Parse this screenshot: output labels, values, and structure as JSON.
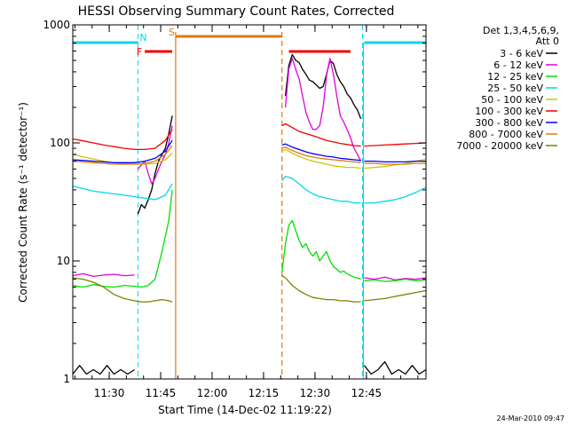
{
  "chart_data": {
    "type": "line",
    "title": "HESSI Observing Summary Count Rates, Corrected",
    "xlabel": "Start Time (14-Dec-02 11:19:22)",
    "ylabel": "Corrected Count Rate (s⁻¹ detector⁻¹)",
    "yscale": "log",
    "ylim": [
      1,
      1000
    ],
    "xlim_minutes": [
      0,
      103
    ],
    "x_ticks": [
      "11:30",
      "11:45",
      "12:00",
      "12:15",
      "12:30",
      "12:45"
    ],
    "x_tick_minutes": [
      10.63,
      25.63,
      40.63,
      55.63,
      70.63,
      85.63
    ],
    "y_ticks": [
      "1",
      "10",
      "100",
      "1000"
    ],
    "y_tick_values": [
      1,
      10,
      100,
      1000
    ],
    "legend_title": "Det 1,3,4,5,6,9,",
    "legend_subtitle": "Att 0",
    "timestamp": "24-Mar-2010 09:47",
    "colors": {
      "night": "#00d8e8",
      "saa": "#e07810",
      "flare": "#ee0000"
    },
    "annotations": {
      "night_label": "N",
      "flare_label": "F",
      "saa_label": "S",
      "night_bars": [
        [
          0,
          19
        ],
        [
          85,
          103
        ]
      ],
      "night_lines": [
        19,
        84.5,
        103
      ],
      "flare_bar": [
        21,
        29
      ],
      "flare_bar2": [
        63,
        81
      ],
      "saa_bar": [
        30,
        61
      ],
      "saa_lines_solid": [
        30
      ],
      "saa_lines_dashed": [
        61
      ]
    },
    "series": [
      {
        "name": "3 - 6 keV",
        "color": "#000000",
        "segments": [
          {
            "x": [
              0,
              2,
              4,
              6,
              8,
              10,
              12,
              14,
              16,
              18
            ],
            "y": [
              1.1,
              1.3,
              1.1,
              1.2,
              1.1,
              1.3,
              1.1,
              1.2,
              1.1,
              1.2
            ]
          },
          {
            "x": [
              19,
              20,
              21,
              22,
              23,
              24,
              25,
              26,
              27,
              28,
              29
            ],
            "y": [
              25,
              30,
              28,
              33,
              40,
              55,
              70,
              80,
              90,
              120,
              170
            ]
          },
          {
            "x": [
              62,
              63,
              64,
              65,
              66,
              67,
              68,
              69,
              70,
              71,
              72,
              73,
              74,
              75,
              76,
              77,
              78,
              79,
              80,
              81,
              82,
              83,
              84
            ],
            "y": [
              250,
              450,
              560,
              500,
              480,
              420,
              380,
              340,
              330,
              310,
              290,
              300,
              380,
              500,
              470,
              380,
              330,
              300,
              260,
              240,
              210,
              190,
              160
            ]
          },
          {
            "x": [
              85,
              87,
              89,
              91,
              93,
              95,
              97,
              99,
              101,
              103
            ],
            "y": [
              1.3,
              1.1,
              1.2,
              1.4,
              1.1,
              1.2,
              1.1,
              1.3,
              1.1,
              1.2
            ]
          }
        ]
      },
      {
        "name": "6 - 12 keV",
        "color": "#e000e0",
        "segments": [
          {
            "x": [
              0,
              3,
              6,
              9,
              12,
              15,
              18
            ],
            "y": [
              7.5,
              7.8,
              7.4,
              7.6,
              7.7,
              7.5,
              7.6
            ]
          },
          {
            "x": [
              19,
              20,
              21,
              22,
              23,
              24,
              25,
              26,
              27,
              28,
              29
            ],
            "y": [
              60,
              65,
              70,
              55,
              45,
              50,
              60,
              70,
              80,
              100,
              140
            ]
          },
          {
            "x": [
              62,
              63,
              64,
              65,
              66,
              67,
              68,
              69,
              70,
              71,
              72,
              73,
              74,
              75,
              76,
              77,
              78,
              79,
              80,
              81,
              82,
              83,
              84
            ],
            "y": [
              200,
              420,
              520,
              420,
              350,
              250,
              180,
              150,
              130,
              130,
              140,
              200,
              370,
              520,
              380,
              250,
              170,
              150,
              130,
              110,
              90,
              80,
              70
            ]
          },
          {
            "x": [
              85,
              88,
              91,
              94,
              97,
              100,
              103
            ],
            "y": [
              7.2,
              7.0,
              7.3,
              6.9,
              7.1,
              7.0,
              7.2
            ]
          }
        ]
      },
      {
        "name": "12 - 25 keV",
        "color": "#00e000",
        "segments": [
          {
            "x": [
              0,
              3,
              6,
              9,
              12,
              15,
              18,
              20,
              22,
              24,
              26,
              28,
              29
            ],
            "y": [
              6.2,
              6.0,
              6.3,
              6.1,
              6.0,
              6.2,
              6.1,
              6.0,
              6.2,
              7.0,
              12,
              22,
              40
            ]
          },
          {
            "x": [
              61,
              62,
              63,
              64,
              65,
              66,
              67,
              68,
              69,
              70,
              71,
              72,
              73,
              74,
              75,
              76,
              77,
              78,
              79,
              80,
              81,
              82,
              83,
              84
            ],
            "y": [
              8,
              14,
              20,
              22,
              18,
              15,
              13,
              14,
              12,
              11,
              12,
              10,
              11,
              12,
              10,
              9,
              8.5,
              8,
              8.2,
              7.8,
              7.5,
              7.3,
              7.2,
              7.0
            ]
          },
          {
            "x": [
              85,
              88,
              91,
              94,
              97,
              100,
              103
            ],
            "y": [
              6.8,
              6.9,
              6.7,
              6.8,
              7.0,
              6.8,
              6.9
            ]
          }
        ]
      },
      {
        "name": "25 - 50 keV",
        "color": "#00d8e8",
        "segments": [
          {
            "x": [
              0,
              3,
              6,
              9,
              12,
              15,
              18,
              21,
              24,
              27,
              29
            ],
            "y": [
              43,
              41,
              39,
              38,
              37,
              36,
              35,
              34,
              33,
              36,
              45
            ]
          },
          {
            "x": [
              61,
              62,
              64,
              66,
              68,
              70,
              72,
              74,
              76,
              78,
              80,
              82,
              84
            ],
            "y": [
              48,
              52,
              50,
              45,
              40,
              37,
              35,
              34,
              33,
              32,
              32,
              31,
              31
            ]
          },
          {
            "x": [
              85,
              88,
              91,
              94,
              97,
              100,
              103
            ],
            "y": [
              31,
              31,
              32,
              33,
              35,
              38,
              42
            ]
          }
        ]
      },
      {
        "name": "50 - 100 keV",
        "color": "#c8c800",
        "segments": [
          {
            "x": [
              0,
              3,
              6,
              9,
              12,
              15,
              18,
              21,
              24,
              27,
              29
            ],
            "y": [
              80,
              76,
              73,
              70,
              68,
              67,
              66,
              66,
              67,
              72,
              82
            ]
          },
          {
            "x": [
              61,
              62,
              64,
              66,
              68,
              70,
              72,
              74,
              76,
              78,
              80,
              82,
              84
            ],
            "y": [
              85,
              88,
              82,
              77,
              73,
              70,
              68,
              66,
              64,
              63,
              62,
              62,
              61
            ]
          },
          {
            "x": [
              85,
              88,
              91,
              94,
              97,
              100,
              103
            ],
            "y": [
              61,
              62,
              63,
              65,
              67,
              70,
              73
            ]
          }
        ]
      },
      {
        "name": "100 - 300 keV",
        "color": "#ee0000",
        "segments": [
          {
            "x": [
              0,
              3,
              6,
              9,
              12,
              15,
              18,
              21,
              24,
              27,
              29
            ],
            "y": [
              108,
              104,
              100,
              96,
              93,
              90,
              88,
              88,
              90,
              105,
              130
            ]
          },
          {
            "x": [
              61,
              62,
              64,
              66,
              68,
              70,
              72,
              74,
              76,
              78,
              80,
              82,
              84
            ],
            "y": [
              140,
              145,
              135,
              125,
              120,
              115,
              110,
              105,
              102,
              99,
              97,
              95,
              94
            ]
          },
          {
            "x": [
              85,
              88,
              91,
              94,
              97,
              100,
              103
            ],
            "y": [
              94,
              95,
              96,
              97,
              98,
              99,
              100
            ]
          }
        ]
      },
      {
        "name": "300 - 800 keV",
        "color": "#0000ee",
        "segments": [
          {
            "x": [
              0,
              3,
              6,
              9,
              12,
              15,
              18,
              21,
              24,
              27,
              29
            ],
            "y": [
              72,
              71,
              70,
              69,
              68,
              68,
              68,
              70,
              74,
              85,
              105
            ]
          },
          {
            "x": [
              61,
              62,
              64,
              66,
              68,
              70,
              72,
              74,
              76,
              78,
              80,
              82,
              84
            ],
            "y": [
              96,
              98,
              92,
              88,
              84,
              81,
              79,
              77,
              76,
              74,
              73,
              72,
              71
            ]
          },
          {
            "x": [
              85,
              88,
              91,
              94,
              97,
              100,
              103
            ],
            "y": [
              70,
              70,
              69,
              69,
              69,
              70,
              70
            ]
          }
        ]
      },
      {
        "name": "800 - 7000 keV",
        "color": "#e07810",
        "segments": [
          {
            "x": [
              0,
              3,
              6,
              9,
              12,
              15,
              18,
              21,
              24,
              27,
              29
            ],
            "y": [
              70,
              69,
              68,
              67,
              66,
              66,
              66,
              67,
              70,
              80,
              95
            ]
          },
          {
            "x": [
              61,
              62,
              64,
              66,
              68,
              70,
              72,
              74,
              76,
              78,
              80,
              82,
              84
            ],
            "y": [
              90,
              92,
              86,
              82,
              78,
              76,
              74,
              73,
              72,
              71,
              70,
              69,
              68
            ]
          },
          {
            "x": [
              85,
              88,
              91,
              94,
              97,
              100,
              103
            ],
            "y": [
              67,
              67,
              66,
              66,
              66,
              67,
              67
            ]
          }
        ]
      },
      {
        "name": "7000 - 20000 keV",
        "color": "#808000",
        "segments": [
          {
            "x": [
              0,
              3,
              6,
              9,
              12,
              15,
              18,
              20,
              22,
              24,
              26,
              28,
              29
            ],
            "y": [
              7.2,
              7.0,
              6.6,
              6.0,
              5.2,
              4.8,
              4.6,
              4.5,
              4.5,
              4.6,
              4.7,
              4.6,
              4.5
            ]
          },
          {
            "x": [
              61,
              62,
              64,
              66,
              68,
              70,
              72,
              74,
              76,
              78,
              80,
              82,
              84
            ],
            "y": [
              7.5,
              7.2,
              6.2,
              5.6,
              5.2,
              4.9,
              4.8,
              4.7,
              4.7,
              4.6,
              4.6,
              4.5,
              4.5
            ]
          },
          {
            "x": [
              85,
              88,
              91,
              94,
              97,
              100,
              103
            ],
            "y": [
              4.6,
              4.7,
              4.8,
              5.0,
              5.2,
              5.4,
              5.6
            ]
          }
        ]
      }
    ]
  }
}
